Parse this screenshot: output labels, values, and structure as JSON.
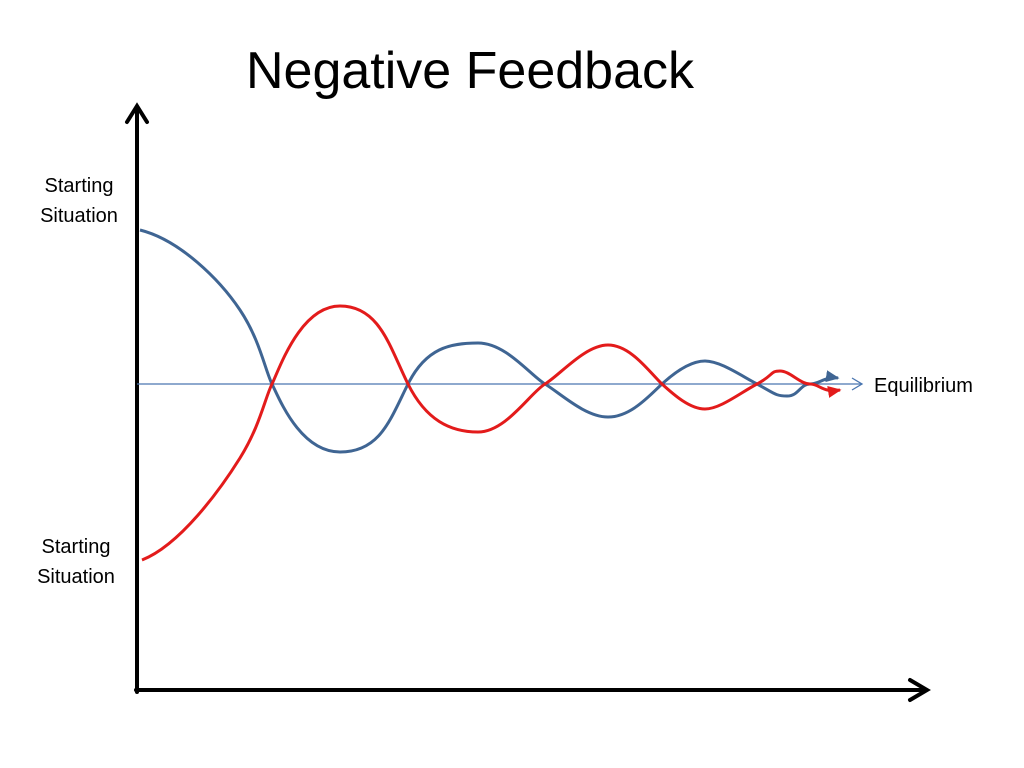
{
  "title": "Negative Feedback",
  "labels": {
    "upper_start": [
      "Starting",
      "Situation"
    ],
    "lower_start": [
      "Starting",
      "Situation"
    ],
    "equilibrium": "Equilibrium"
  }
}
